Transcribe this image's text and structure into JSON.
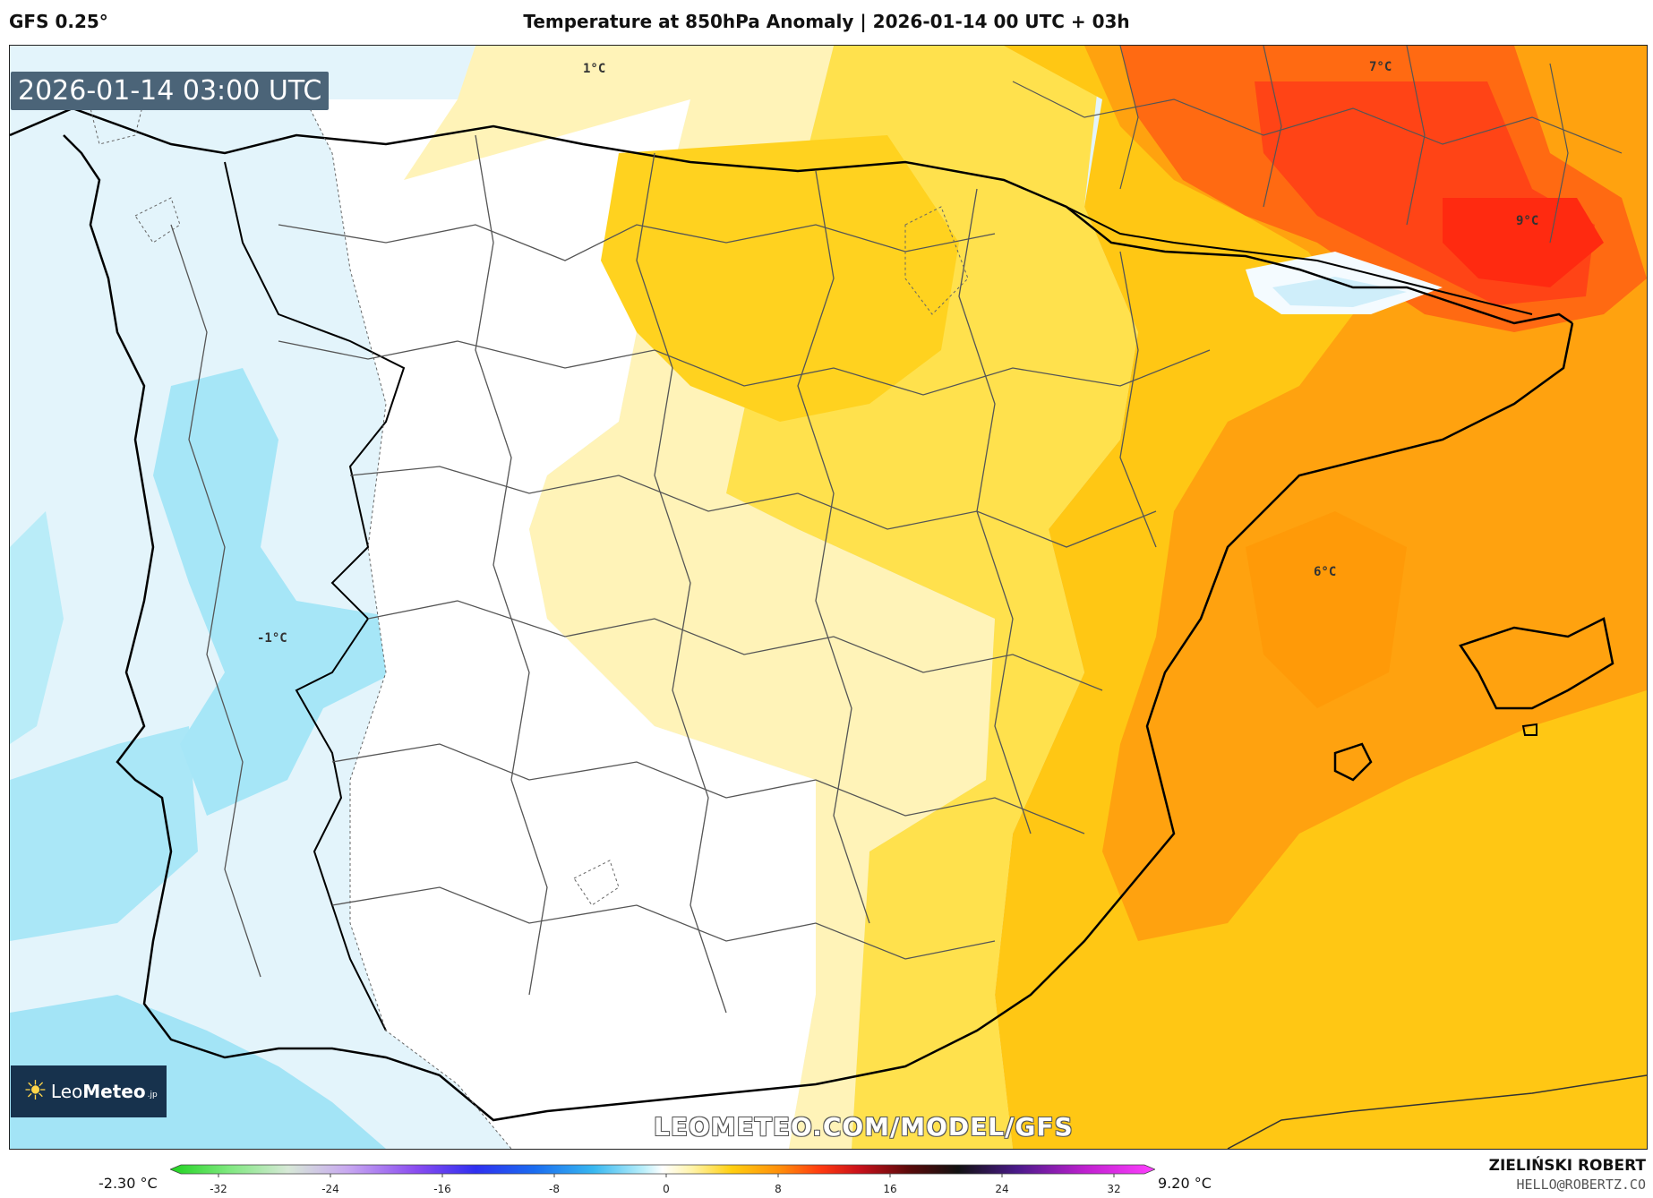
{
  "header": {
    "model": "GFS 0.25°",
    "title": "Temperature at 850hPa Anomaly | 2026-01-14 00 UTC + 03h"
  },
  "map": {
    "valid_time": "2026-01-14 03:00 UTC",
    "watermark": "LEOMETEO.COM/MODEL/GFS",
    "logo": {
      "leo": "Leo",
      "meteo": "Meteo",
      "suffix": ".jp"
    },
    "labels": [
      {
        "id": "one",
        "text": "1°C"
      },
      {
        "id": "seven",
        "text": "7°C"
      },
      {
        "id": "nine",
        "text": "9°C"
      },
      {
        "id": "six",
        "text": "6°C"
      },
      {
        "id": "minus-one",
        "text": "-1°C"
      }
    ]
  },
  "colorbar": {
    "min_label": "-2.30 °C",
    "max_label": "9.20 °C",
    "ticks": [
      "-32",
      "-24",
      "-16",
      "-8",
      "0",
      "8",
      "16",
      "24",
      "32"
    ]
  },
  "footer": {
    "author": "ZIELIŃSKI ROBERT",
    "email": "HELLO@ROBERTZ.CO"
  }
}
